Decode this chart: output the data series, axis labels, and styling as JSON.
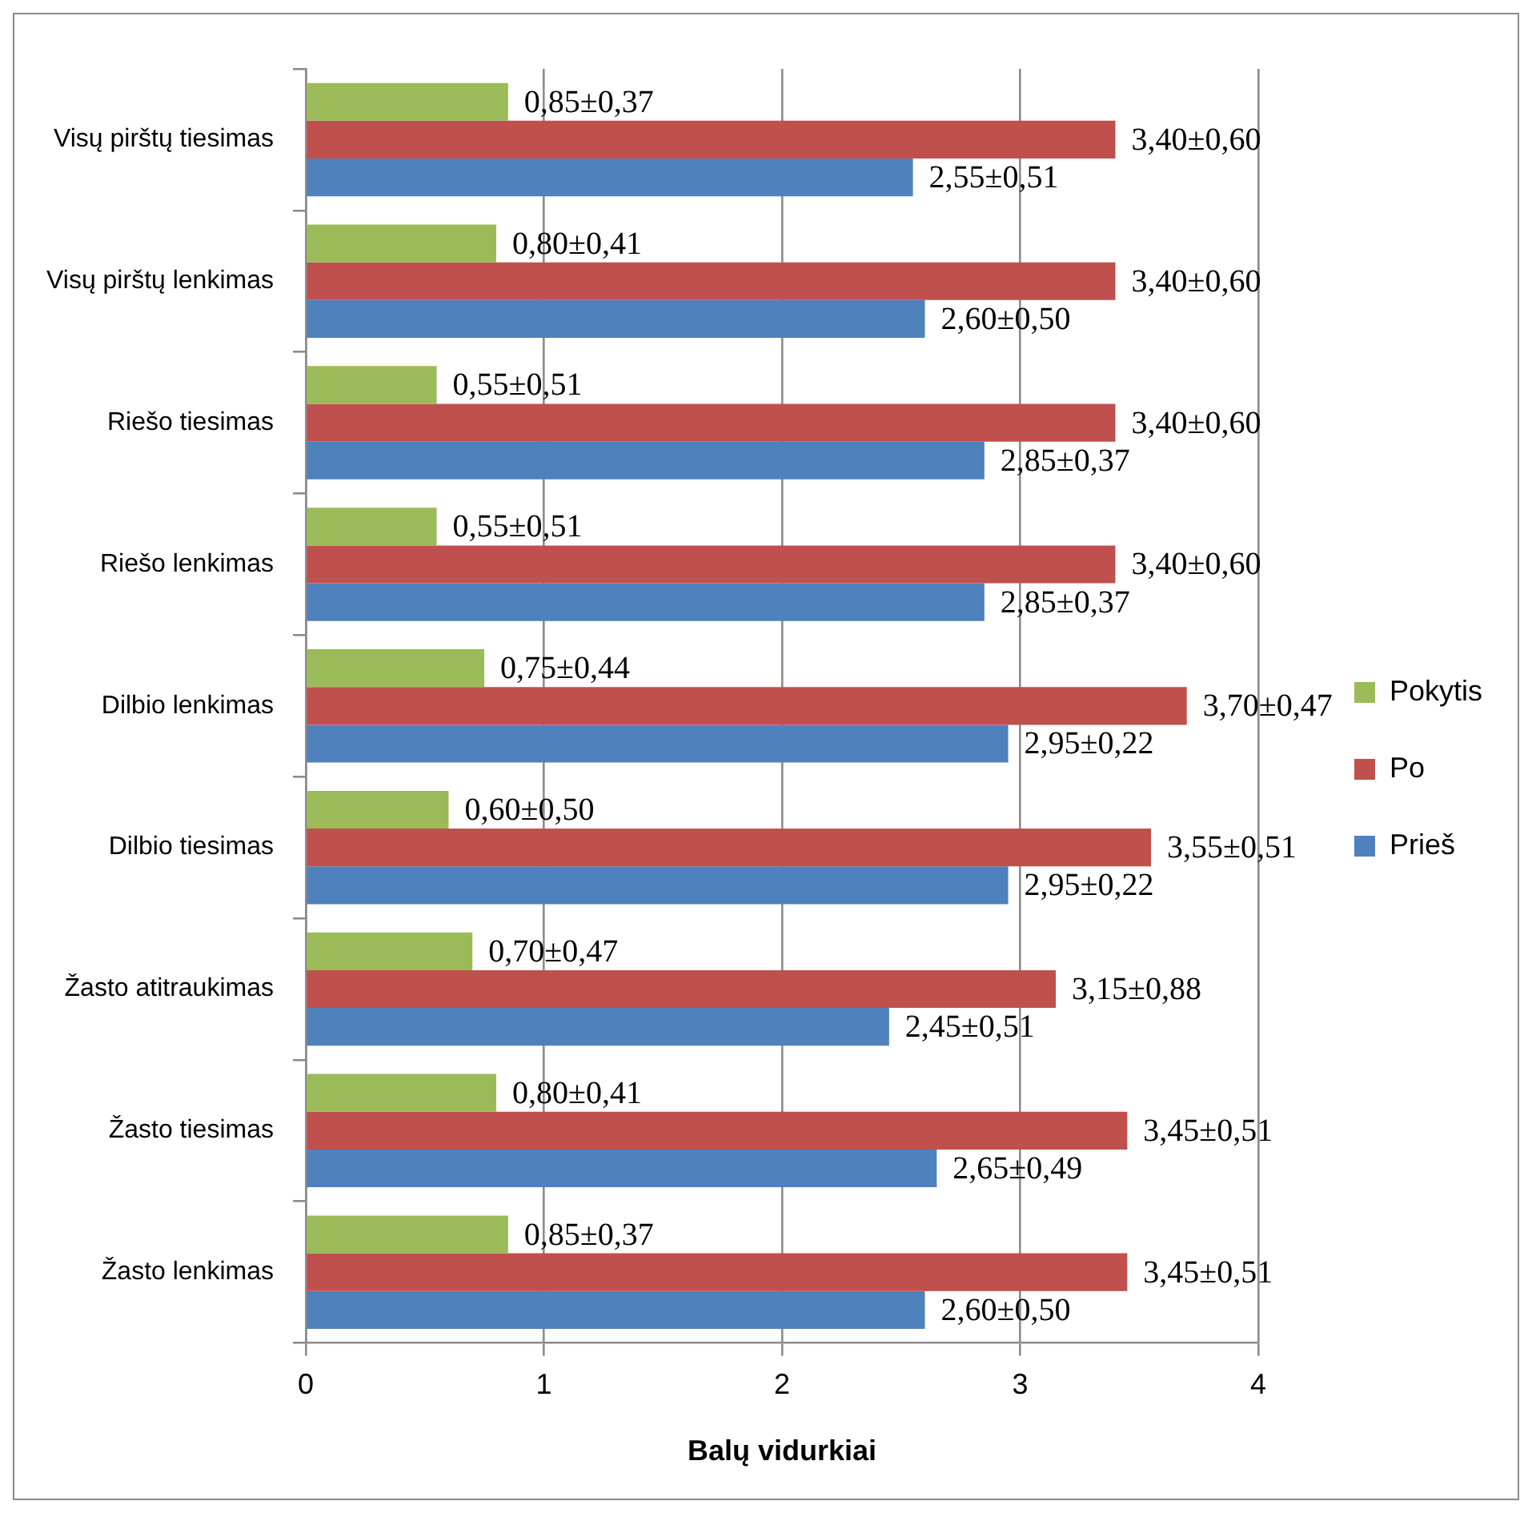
{
  "chart_data": {
    "type": "bar",
    "orientation": "horizontal",
    "xlabel": "Balų vidurkiai",
    "categories": [
      "Visų pirštų tiesimas",
      "Visų pirštų lenkimas",
      "Riešo tiesimas",
      "Riešo lenkimas",
      "Dilbio lenkimas",
      "Dilbio tiesimas",
      "Žasto atitraukimas",
      "Žasto tiesimas",
      "Žasto lenkimas"
    ],
    "series": [
      {
        "name": "Pokytis",
        "color": "#9bbb59",
        "values": [
          0.85,
          0.8,
          0.55,
          0.55,
          0.75,
          0.6,
          0.7,
          0.8,
          0.85
        ],
        "value_labels": [
          "0,85±0,37",
          "0,80±0,41",
          "0,55±0,51",
          "0,55±0,51",
          "0,75±0,44",
          "0,60±0,50",
          "0,70±0,47",
          "0,80±0,41",
          "0,85±0,37"
        ]
      },
      {
        "name": "Po",
        "color": "#c0504d",
        "values": [
          3.4,
          3.4,
          3.4,
          3.4,
          3.7,
          3.55,
          3.15,
          3.45,
          3.45
        ],
        "value_labels": [
          "3,40±0,60",
          "3,40±0,60",
          "3,40±0,60",
          "3,40±0,60",
          "3,70±0,47",
          "3,55±0,51",
          "3,15±0,88",
          "3,45±0,51",
          "3,45±0,51"
        ]
      },
      {
        "name": "Prieš",
        "color": "#4f81bd",
        "values": [
          2.55,
          2.6,
          2.85,
          2.85,
          2.95,
          2.95,
          2.45,
          2.65,
          2.6
        ],
        "value_labels": [
          "2,55±0,51",
          "2,60±0,50",
          "2,85±0,37",
          "2,85±0,37",
          "2,95±0,22",
          "2,95±0,22",
          "2,45±0,51",
          "2,65±0,49",
          "2,60±0,50"
        ]
      }
    ],
    "xlim": [
      0,
      4
    ],
    "xticks": [
      0,
      1,
      2,
      3,
      4
    ],
    "grid": "x",
    "legend": "right"
  }
}
